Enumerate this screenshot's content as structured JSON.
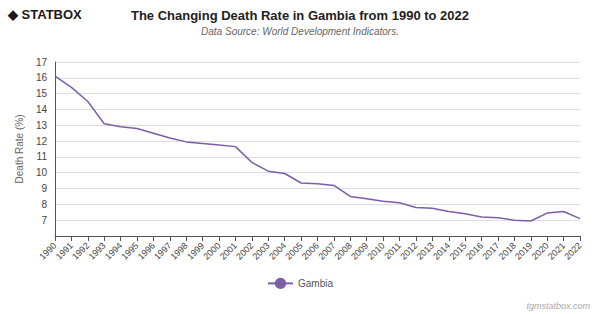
{
  "chart_data": {
    "type": "line",
    "title": "The Changing Death Rate in Gambia from 1990 to 2022",
    "subtitle": "Data Source: World Development Indicators.",
    "ylabel": "Death Rate (%)",
    "annotations": [
      "◆ STATBOX",
      "tgmstatbox.com"
    ],
    "x": [
      1990,
      1991,
      1992,
      1993,
      1994,
      1995,
      1996,
      1997,
      1998,
      1999,
      2000,
      2001,
      2002,
      2003,
      2004,
      2005,
      2006,
      2007,
      2008,
      2009,
      2010,
      2011,
      2012,
      2013,
      2014,
      2015,
      2016,
      2017,
      2018,
      2019,
      2020,
      2021,
      2022
    ],
    "xlim": [
      1990,
      2022
    ],
    "xticks": [
      1990,
      1991,
      1992,
      1993,
      1994,
      1995,
      1996,
      1997,
      1998,
      1999,
      2000,
      2001,
      2002,
      2003,
      2004,
      2005,
      2006,
      2007,
      2008,
      2009,
      2010,
      2011,
      2012,
      2013,
      2014,
      2015,
      2016,
      2017,
      2018,
      2019,
      2020,
      2021,
      2022
    ],
    "series": [
      {
        "name": "Gambia",
        "color": "#7B5EA7",
        "values": [
          16.1,
          15.4,
          14.5,
          13.1,
          12.9,
          12.8,
          12.5,
          12.2,
          11.95,
          11.85,
          11.75,
          11.65,
          10.65,
          10.1,
          9.95,
          9.35,
          9.3,
          9.2,
          8.5,
          8.35,
          8.2,
          8.1,
          7.8,
          7.75,
          7.55,
          7.4,
          7.2,
          7.15,
          7.0,
          6.95,
          7.45,
          7.55,
          7.1
        ]
      }
    ],
    "ylim": [
      6,
      17
    ],
    "yticks": [
      7,
      8,
      9,
      10,
      11,
      12,
      13,
      14,
      15,
      16,
      17
    ],
    "grid": true,
    "legend": "bottom"
  }
}
